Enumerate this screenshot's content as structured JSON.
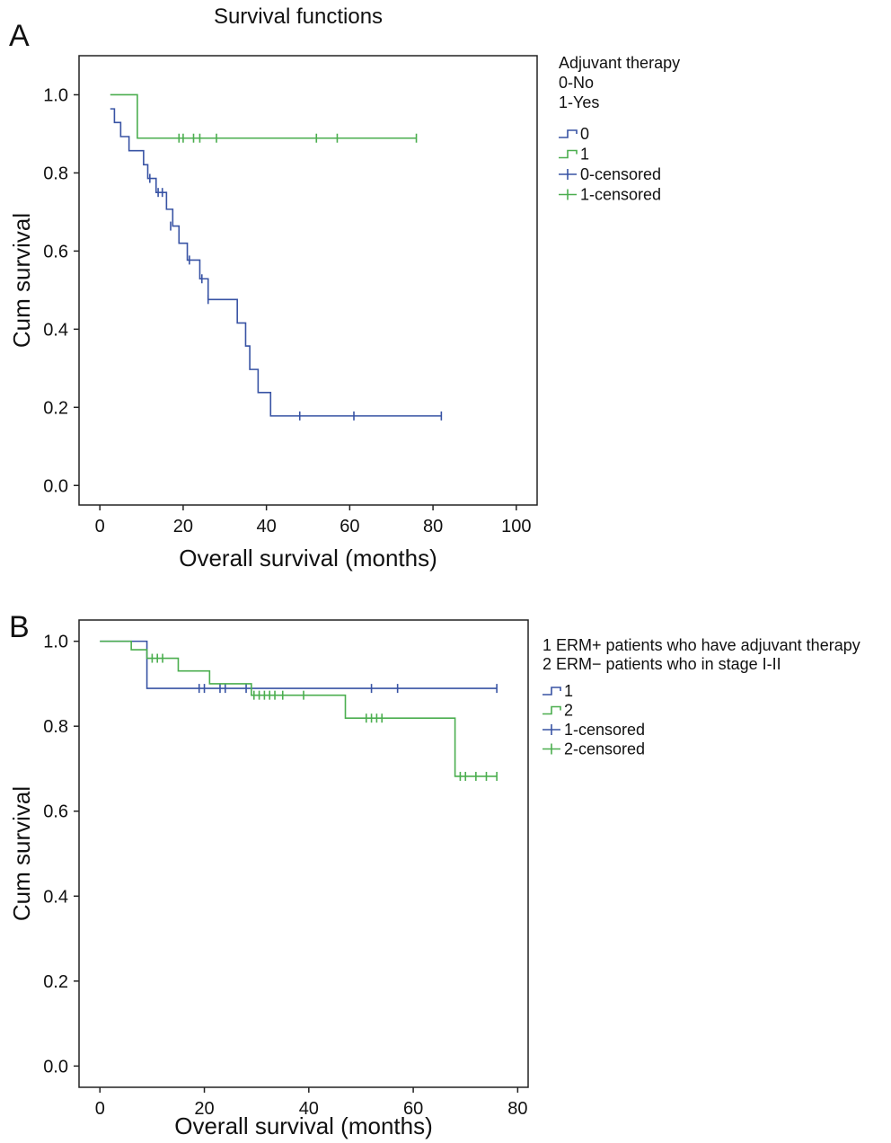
{
  "chart_data": [
    {
      "type": "line",
      "panel_label": "A",
      "title": "Survival functions",
      "xlabel": "Overall survival (months)",
      "ylabel": "Cum survival",
      "xlim": [
        -5,
        105
      ],
      "ylim": [
        -0.05,
        1.1
      ],
      "x_ticks": [
        0,
        20,
        40,
        60,
        80,
        100
      ],
      "y_ticks": [
        0.0,
        0.2,
        0.4,
        0.6,
        0.8,
        1.0
      ],
      "grid": false,
      "legend_header": [
        "Adjuvant therapy",
        "0-No",
        "1-Yes"
      ],
      "legend": [
        "0",
        "1",
        "0-censored",
        "1-censored"
      ],
      "series": [
        {
          "name": "0",
          "color": "#3853a4",
          "step": [
            [
              2.5,
              0.964
            ],
            [
              3.5,
              0.929
            ],
            [
              5,
              0.893
            ],
            [
              7,
              0.857
            ],
            [
              10.5,
              0.821
            ],
            [
              11.5,
              0.786
            ],
            [
              13,
              0.786
            ],
            [
              13.5,
              0.75
            ],
            [
              15.5,
              0.75
            ],
            [
              16,
              0.707
            ],
            [
              17.5,
              0.664
            ],
            [
              19,
              0.62
            ],
            [
              21,
              0.577
            ],
            [
              24,
              0.529
            ],
            [
              26,
              0.476
            ],
            [
              33,
              0.476
            ],
            [
              33,
              0.416
            ],
            [
              35,
              0.357
            ],
            [
              36,
              0.297
            ],
            [
              38,
              0.238
            ],
            [
              41,
              0.178
            ],
            [
              82,
              0.178
            ]
          ],
          "censored": [
            [
              12,
              0.786
            ],
            [
              14,
              0.75
            ],
            [
              15,
              0.75
            ],
            [
              17,
              0.664
            ],
            [
              21.5,
              0.577
            ],
            [
              24.5,
              0.529
            ],
            [
              26,
              0.476
            ],
            [
              48,
              0.178
            ],
            [
              61,
              0.178
            ],
            [
              82,
              0.178
            ]
          ]
        },
        {
          "name": "1",
          "color": "#4bae4f",
          "step": [
            [
              2.5,
              1.0
            ],
            [
              9,
              1.0
            ],
            [
              9,
              0.889
            ],
            [
              76,
              0.889
            ]
          ],
          "censored": [
            [
              19,
              0.889
            ],
            [
              20,
              0.889
            ],
            [
              22.5,
              0.889
            ],
            [
              24,
              0.889
            ],
            [
              28,
              0.889
            ],
            [
              52,
              0.889
            ],
            [
              57,
              0.889
            ],
            [
              76,
              0.889
            ]
          ]
        }
      ]
    },
    {
      "type": "line",
      "panel_label": "B",
      "title": "",
      "xlabel": "Overall survival (months)",
      "ylabel": "Cum survival",
      "xlim": [
        -4,
        82
      ],
      "ylim": [
        -0.05,
        1.05
      ],
      "x_ticks": [
        0,
        20,
        40,
        60,
        80
      ],
      "y_ticks": [
        0.0,
        0.2,
        0.4,
        0.6,
        0.8,
        1.0
      ],
      "grid": false,
      "legend_header": [
        "1 ERM+ patients who have adjuvant therapy",
        "2 ERM− patients who in stage I-II"
      ],
      "legend": [
        "1",
        "2",
        "1-censored",
        "2-censored"
      ],
      "series": [
        {
          "name": "1",
          "color": "#3853a4",
          "step": [
            [
              0,
              1.0
            ],
            [
              9,
              1.0
            ],
            [
              9,
              0.889
            ],
            [
              76,
              0.889
            ]
          ],
          "censored": [
            [
              19,
              0.889
            ],
            [
              20,
              0.889
            ],
            [
              23,
              0.889
            ],
            [
              24,
              0.889
            ],
            [
              28,
              0.889
            ],
            [
              52,
              0.889
            ],
            [
              57,
              0.889
            ],
            [
              76,
              0.889
            ]
          ]
        },
        {
          "name": "2",
          "color": "#4bae4f",
          "step": [
            [
              0,
              1.0
            ],
            [
              6,
              1.0
            ],
            [
              6,
              0.98
            ],
            [
              9,
              0.98
            ],
            [
              9,
              0.96
            ],
            [
              15,
              0.96
            ],
            [
              15,
              0.93
            ],
            [
              21,
              0.93
            ],
            [
              21,
              0.9
            ],
            [
              29,
              0.9
            ],
            [
              29,
              0.873
            ],
            [
              47,
              0.873
            ],
            [
              47,
              0.819
            ],
            [
              68,
              0.819
            ],
            [
              68,
              0.682
            ],
            [
              76,
              0.682
            ]
          ],
          "censored": [
            [
              10,
              0.96
            ],
            [
              11,
              0.96
            ],
            [
              12,
              0.96
            ],
            [
              29.5,
              0.873
            ],
            [
              30.5,
              0.873
            ],
            [
              31.5,
              0.873
            ],
            [
              32.5,
              0.873
            ],
            [
              33.5,
              0.873
            ],
            [
              35,
              0.873
            ],
            [
              39,
              0.873
            ],
            [
              51,
              0.819
            ],
            [
              52,
              0.819
            ],
            [
              53,
              0.819
            ],
            [
              54,
              0.819
            ],
            [
              69,
              0.682
            ],
            [
              70,
              0.682
            ],
            [
              72,
              0.682
            ],
            [
              74,
              0.682
            ],
            [
              76,
              0.682
            ]
          ]
        }
      ]
    }
  ]
}
